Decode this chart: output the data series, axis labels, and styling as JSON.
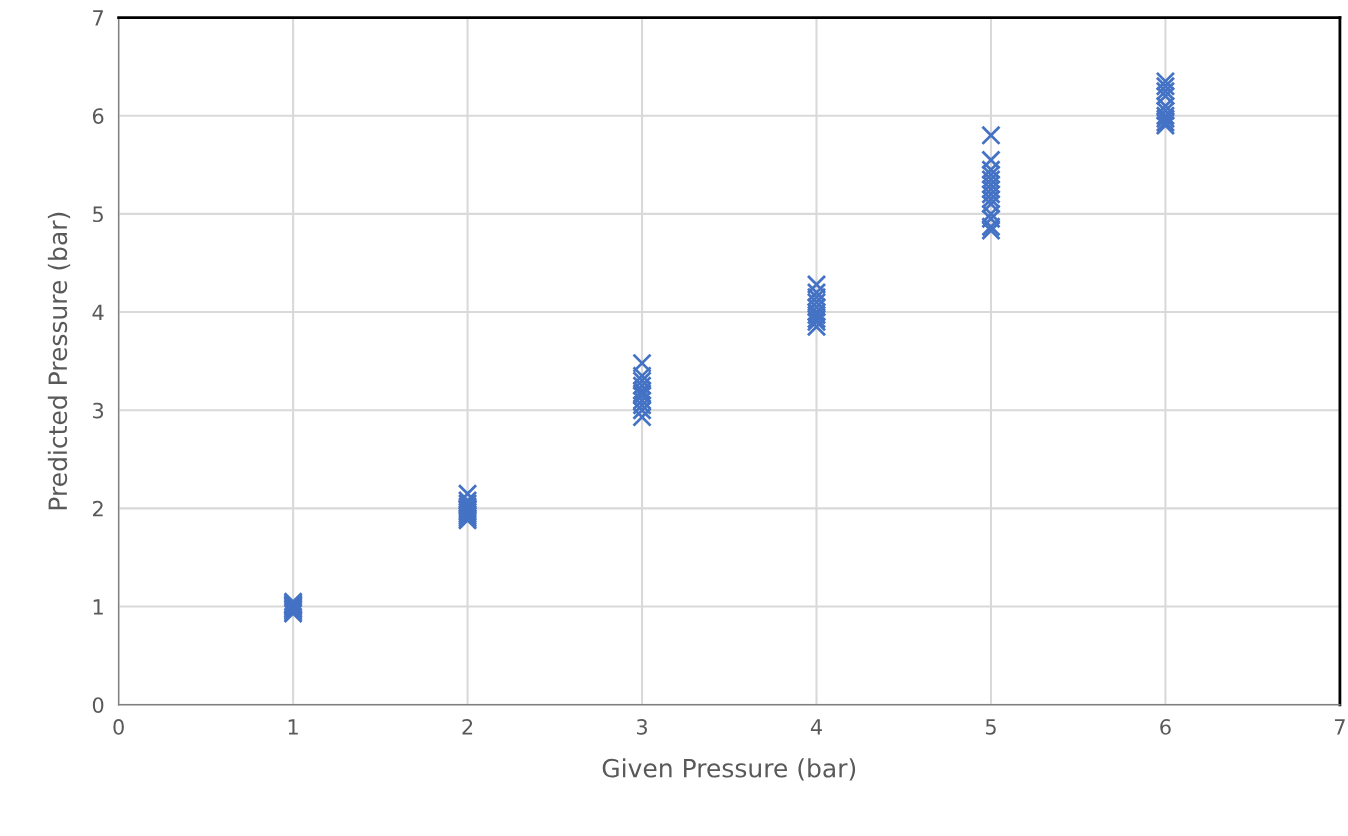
{
  "chart_data": {
    "type": "scatter",
    "xlabel": "Given Pressure (bar)",
    "ylabel": "Predicted Pressure (bar)",
    "xlim": [
      0,
      7
    ],
    "ylim": [
      0,
      7
    ],
    "xticks": [
      0,
      1,
      2,
      3,
      4,
      5,
      6,
      7
    ],
    "yticks": [
      0,
      1,
      2,
      3,
      4,
      5,
      6,
      7
    ],
    "grid": true,
    "marker": "cross",
    "series": [
      {
        "color": "#4472c4",
        "x": [
          1,
          1,
          1,
          1,
          1,
          1,
          1,
          1,
          1,
          2,
          2,
          2,
          2,
          2,
          2,
          2,
          2,
          2,
          2,
          2,
          3,
          3,
          3,
          3,
          3,
          3,
          3,
          3,
          3,
          3,
          3,
          4,
          4,
          4,
          4,
          4,
          4,
          4,
          4,
          4,
          4,
          5,
          5,
          5,
          5,
          5,
          5,
          5,
          5,
          5,
          5,
          5,
          5,
          5,
          5,
          6,
          6,
          6,
          6,
          6,
          6,
          6,
          6,
          6,
          6
        ],
        "values": [
          0.93,
          0.95,
          0.97,
          0.98,
          1.0,
          1.01,
          1.02,
          1.03,
          1.05,
          2.15,
          2.08,
          2.05,
          2.02,
          2.0,
          1.98,
          1.96,
          1.94,
          1.92,
          1.9,
          1.88,
          3.48,
          3.35,
          3.3,
          3.25,
          3.2,
          3.17,
          3.15,
          3.1,
          3.05,
          3.0,
          2.93,
          4.28,
          4.2,
          4.15,
          4.1,
          4.05,
          4.0,
          3.97,
          3.93,
          3.9,
          3.85,
          5.8,
          5.55,
          5.45,
          5.4,
          5.35,
          5.3,
          5.25,
          5.2,
          5.15,
          5.1,
          5.0,
          4.95,
          4.87,
          4.83,
          6.35,
          6.3,
          6.25,
          6.2,
          6.1,
          6.05,
          6.0,
          5.97,
          5.93,
          5.9
        ]
      }
    ]
  }
}
